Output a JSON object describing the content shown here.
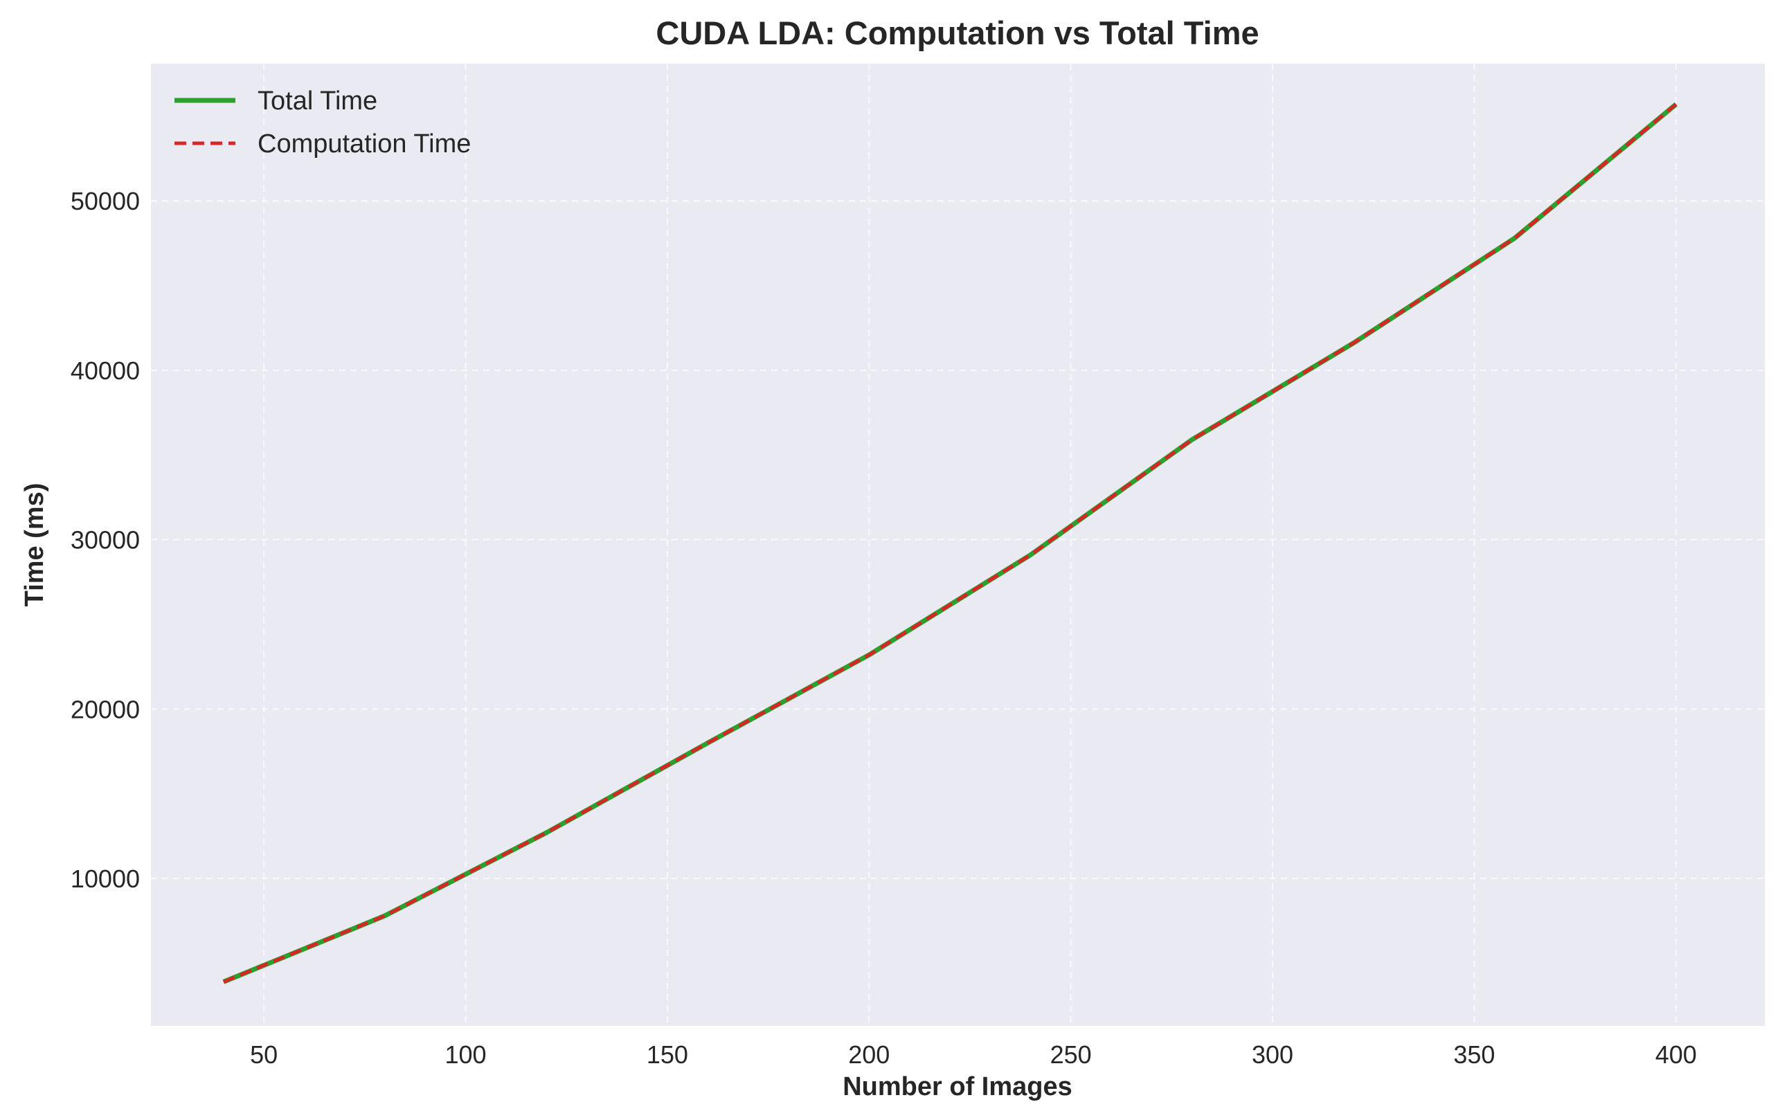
{
  "chart_data": {
    "type": "line",
    "title": "CUDA LDA: Computation vs Total Time",
    "xlabel": "Number of Images",
    "ylabel": "Time (ms)",
    "xlim": [
      22,
      422
    ],
    "ylim": [
      1300,
      58100
    ],
    "xticks": [
      50,
      100,
      150,
      200,
      250,
      300,
      350,
      400
    ],
    "yticks": [
      10000,
      20000,
      30000,
      40000,
      50000
    ],
    "grid": true,
    "legend_position": "upper-left",
    "x": [
      40,
      80,
      120,
      160,
      200,
      240,
      280,
      320,
      360,
      400
    ],
    "series": [
      {
        "name": "Total Time",
        "color": "#2ca02c",
        "style": "solid",
        "values": [
          3900,
          7800,
          12700,
          18000,
          23200,
          29100,
          35900,
          41600,
          47800,
          55700
        ]
      },
      {
        "name": "Computation Time",
        "color": "#d62728",
        "style": "dashed",
        "values": [
          3900,
          7800,
          12700,
          18000,
          23200,
          29100,
          35900,
          41600,
          47800,
          55700
        ]
      }
    ],
    "colors": {
      "plot_background": "#eaeaf2",
      "grid": "#ffffff",
      "text": "#262626"
    }
  }
}
